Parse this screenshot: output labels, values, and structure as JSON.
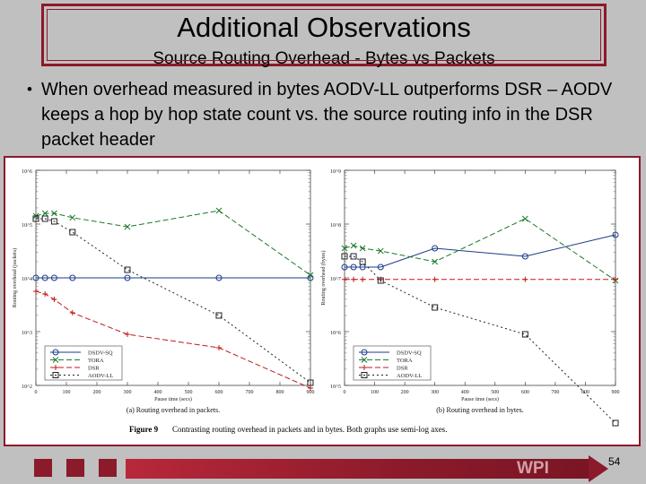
{
  "slide": {
    "title": "Additional Observations",
    "subtitle": "Source Routing Overhead - Bytes vs Packets",
    "bullet": "When overhead measured in bytes AODV-LL outperforms DSR – AODV keeps a hop by hop state count vs. the source routing info in the DSR packet header",
    "footer_logo": "WPI",
    "page_number": "54"
  },
  "figure": {
    "caption_label": "Figure 9",
    "caption_text": "Contrasting routing overhead in packets and in bytes. Both graphs use semi-log axes."
  },
  "chart_data": [
    {
      "type": "line",
      "panel_label": "(a) Routing overhead in packets.",
      "xlabel": "Pause time (secs)",
      "ylabel": "Routing overhead (packets)",
      "log_y": true,
      "ylim_exp": [
        2,
        6
      ],
      "y_tick_labels": [
        "10^6",
        "10^5",
        "10^4",
        "10^3",
        "10^2"
      ],
      "x_ticks": [
        0,
        100,
        200,
        300,
        400,
        500,
        600,
        700,
        800,
        900
      ],
      "xlim": [
        0,
        900
      ],
      "legend": [
        "DSDV-SQ",
        "TORA",
        "DSR",
        "AODV-LL"
      ],
      "legend_position": "bottom-left",
      "series": [
        {
          "name": "DSDV-SQ",
          "color": "#1a3a8a",
          "dash": "",
          "marker": "circle",
          "x": [
            0,
            30,
            60,
            120,
            300,
            600,
            900
          ],
          "y": [
            4.0,
            4.0,
            4.0,
            4.0,
            4.0,
            4.0,
            4.0
          ]
        },
        {
          "name": "TORA",
          "color": "#1a7a2a",
          "dash": "6,3",
          "marker": "x",
          "x": [
            0,
            30,
            60,
            120,
            300,
            600,
            900
          ],
          "y": [
            5.15,
            5.2,
            5.2,
            5.12,
            4.95,
            5.25,
            4.05
          ]
        },
        {
          "name": "DSR",
          "color": "#c01818",
          "dash": "6,3",
          "marker": "plus",
          "x": [
            0,
            30,
            60,
            120,
            300,
            600,
            900
          ],
          "y": [
            3.75,
            3.7,
            3.6,
            3.35,
            2.95,
            2.7,
            1.95
          ]
        },
        {
          "name": "AODV-LL",
          "color": "#222222",
          "dash": "2,3",
          "marker": "square",
          "x": [
            0,
            30,
            60,
            120,
            300,
            600,
            900
          ],
          "y": [
            5.1,
            5.1,
            5.05,
            4.85,
            4.15,
            3.3,
            2.05
          ]
        }
      ]
    },
    {
      "type": "line",
      "panel_label": "(b) Routing overhead in bytes.",
      "xlabel": "Pause time (secs)",
      "ylabel": "Routing overhead (bytes)",
      "log_y": true,
      "ylim_exp": [
        5,
        9
      ],
      "y_tick_labels": [
        "10^9",
        "10^8",
        "10^7",
        "10^6",
        "10^5"
      ],
      "x_ticks": [
        0,
        100,
        200,
        300,
        400,
        500,
        600,
        700,
        800,
        900
      ],
      "xlim": [
        0,
        900
      ],
      "legend": [
        "DSDV-SQ",
        "TORA",
        "DSR",
        "AODV-LL"
      ],
      "legend_position": "bottom-left",
      "series": [
        {
          "name": "DSDV-SQ",
          "color": "#1a3a8a",
          "dash": "",
          "marker": "circle",
          "x": [
            0,
            30,
            60,
            120,
            300,
            600,
            900
          ],
          "y": [
            7.2,
            7.2,
            7.2,
            7.2,
            7.55,
            7.4,
            7.8
          ]
        },
        {
          "name": "TORA",
          "color": "#1a7a2a",
          "dash": "6,3",
          "marker": "x",
          "x": [
            0,
            30,
            60,
            120,
            300,
            600,
            900
          ],
          "y": [
            7.55,
            7.6,
            7.55,
            7.5,
            7.3,
            8.1,
            6.95
          ]
        },
        {
          "name": "DSR",
          "color": "#c01818",
          "dash": "6,3",
          "marker": "plus",
          "x": [
            0,
            30,
            60,
            120,
            300,
            600,
            900
          ],
          "y": [
            6.97,
            6.97,
            6.97,
            6.97,
            6.97,
            6.97,
            6.97
          ]
        },
        {
          "name": "AODV-LL",
          "color": "#222222",
          "dash": "2,3",
          "marker": "square",
          "x": [
            0,
            30,
            60,
            120,
            300,
            600,
            900
          ],
          "y": [
            7.4,
            7.4,
            7.3,
            6.95,
            6.45,
            5.95,
            4.3
          ]
        }
      ]
    }
  ]
}
